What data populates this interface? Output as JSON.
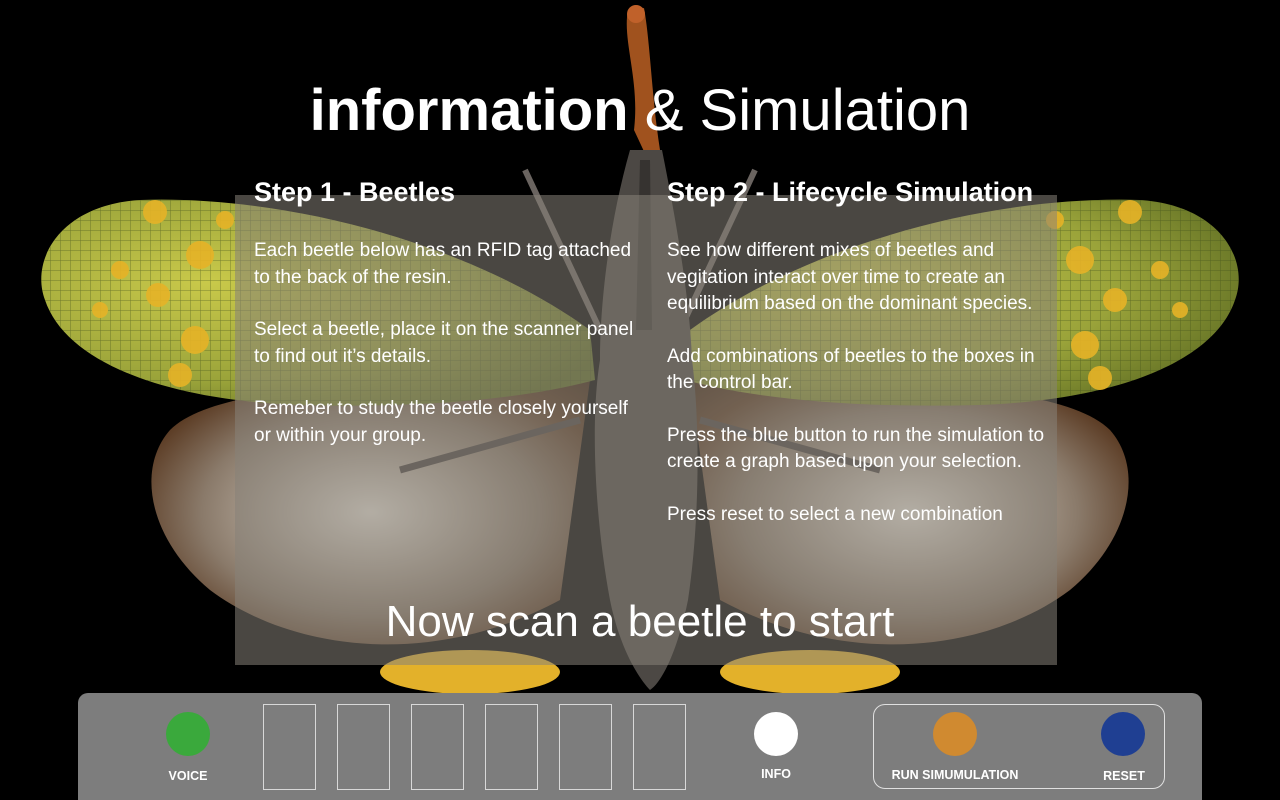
{
  "header": {
    "title_bold": "information",
    "title_rest": "& Simulation"
  },
  "step1": {
    "heading": "Step 1 - Beetles",
    "paragraphs": [
      "Each beetle below has an RFID tag attached to the back of the resin.",
      "Select a beetle, place it on the scanner panel to find out it’s details.",
      "Remeber to study the beetle closely yourself or within your group."
    ]
  },
  "step2": {
    "heading": "Step 2 - Lifecycle Simulation",
    "paragraphs": [
      "See how different mixes of beetles and vegitation interact over time to create an equilibrium based on the dominant species.",
      "Add combinations of beetles to the boxes in the control bar.",
      "Press the blue button to run the simulation to create a graph based upon your selection.",
      "Press reset to select a new combination"
    ]
  },
  "prompt": "Now scan a beetle to start",
  "control_bar": {
    "voice_label": "VOICE",
    "info_label": "INFO",
    "run_label": "RUN SIMUMULATION",
    "reset_label": "RESET",
    "slot_count": 6,
    "colors": {
      "voice": "#3aa93c",
      "info": "#ffffff",
      "run": "#d08a30",
      "reset": "#1f3f92",
      "bar": "#7d7d7d"
    }
  },
  "background_image": "lanternfly-insect-specimen"
}
